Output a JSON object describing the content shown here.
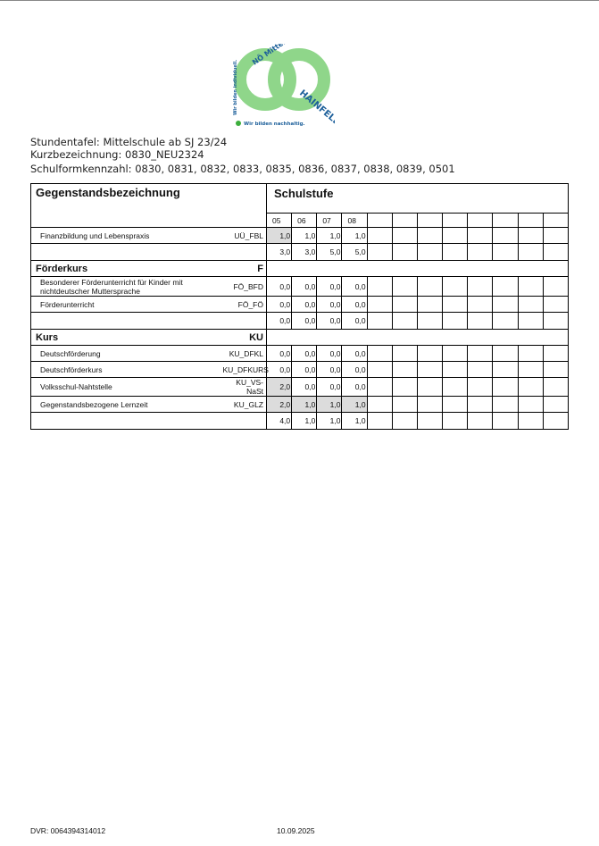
{
  "logo": {
    "text": "NÖ Mittelschule HAINFELD",
    "slogan_vertical": "Wir bilden individuell.",
    "slogan_bottom": "Wir bilden nachhaltig.",
    "colors": {
      "green": "#8fd68a",
      "blue": "#1c5f9a"
    }
  },
  "header": {
    "title": "Stundentafel: Mittelschule ab SJ 23/24",
    "short_name": "Kurzbezeichnung: 0830_NEU2324",
    "school_codes": "Schulformkennzahl: 0830, 0831, 0832, 0833, 0835, 0836, 0837, 0838, 0839, 0501"
  },
  "table": {
    "col_subject": "Gegenstandsbezeichnung",
    "col_grade": "Schulstufe",
    "grades": [
      "05",
      "06",
      "07",
      "08"
    ],
    "empty_columns": 8,
    "highlight_color": "#dcdcdc",
    "rows": [
      {
        "type": "item",
        "name": "Finanzbildung und Lebenspraxis",
        "code": "UÜ_FBL",
        "values": [
          "1,0",
          "1,0",
          "1,0",
          "1,0"
        ],
        "highlighted": [
          true,
          false,
          false,
          false
        ]
      },
      {
        "type": "sum",
        "values": [
          "3,0",
          "3,0",
          "5,0",
          "5,0"
        ]
      },
      {
        "type": "section",
        "name": "Förderkurs",
        "code": "F"
      },
      {
        "type": "item",
        "name": "Besonderer Förderunterricht für Kinder mit nichtdeutscher Muttersprache",
        "code": "FÖ_BFD",
        "values": [
          "0,0",
          "0,0",
          "0,0",
          "0,0"
        ],
        "highlighted": [
          false,
          false,
          false,
          false
        ],
        "tall": true
      },
      {
        "type": "item",
        "name": "Förderunterricht",
        "code": "FÖ_FÖ",
        "values": [
          "0,0",
          "0,0",
          "0,0",
          "0,0"
        ],
        "highlighted": [
          false,
          false,
          false,
          false
        ]
      },
      {
        "type": "sum",
        "values": [
          "0,0",
          "0,0",
          "0,0",
          "0,0"
        ]
      },
      {
        "type": "section",
        "name": "Kurs",
        "code": "KU"
      },
      {
        "type": "item",
        "name": "Deutschförderung",
        "code": "KU_DFKL",
        "values": [
          "0,0",
          "0,0",
          "0,0",
          "0,0"
        ],
        "highlighted": [
          false,
          false,
          false,
          false
        ]
      },
      {
        "type": "item",
        "name": "Deutschförderkurs",
        "code": "KU_DFKURS",
        "values": [
          "0,0",
          "0,0",
          "0,0",
          "0,0"
        ],
        "highlighted": [
          false,
          false,
          false,
          false
        ]
      },
      {
        "type": "item",
        "name": "Volksschul-Nahtstelle",
        "code": "KU_VS-NaSt",
        "values": [
          "2,0",
          "0,0",
          "0,0",
          "0,0"
        ],
        "highlighted": [
          true,
          false,
          false,
          false
        ]
      },
      {
        "type": "item",
        "name": "Gegenstandsbezogene Lernzeit",
        "code": "KU_GLZ",
        "values": [
          "2,0",
          "1,0",
          "1,0",
          "1,0"
        ],
        "highlighted": [
          true,
          true,
          true,
          true
        ]
      },
      {
        "type": "sum",
        "values": [
          "4,0",
          "1,0",
          "1,0",
          "1,0"
        ]
      }
    ]
  },
  "footer": {
    "dvr": "DVR: 0064394314012",
    "date": "10.09.2025"
  }
}
